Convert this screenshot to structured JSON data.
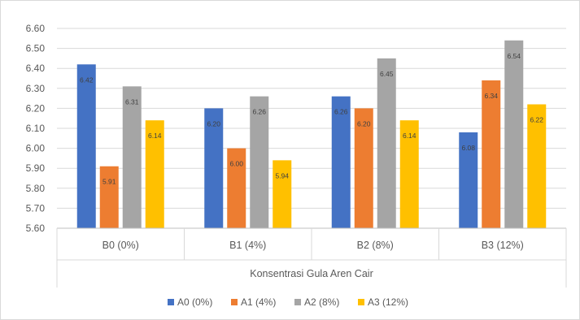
{
  "chart_data": {
    "type": "bar",
    "categories": [
      "B0 (0%)",
      "B1 (4%)",
      "B2 (8%)",
      "B3 (12%)"
    ],
    "series": [
      {
        "name": "A0 (0%)",
        "color": "#4472C4",
        "values": [
          6.42,
          6.2,
          6.26,
          6.08
        ],
        "labels": [
          "6.42",
          "6.20",
          "6.26",
          "6.08"
        ]
      },
      {
        "name": "A1 (4%)",
        "color": "#ED7D31",
        "values": [
          5.91,
          6.0,
          6.2,
          6.34
        ],
        "labels": [
          "5.91",
          "6.00",
          "6.20",
          "6.34"
        ]
      },
      {
        "name": "A2 (8%)",
        "color": "#A5A5A5",
        "values": [
          6.31,
          6.26,
          6.45,
          6.54
        ],
        "labels": [
          "6.31",
          "6.26",
          "6.45",
          "6.54"
        ]
      },
      {
        "name": "A3 (12%)",
        "color": "#FFC000",
        "values": [
          6.14,
          5.94,
          6.14,
          6.22
        ],
        "labels": [
          "6.14",
          "5.94",
          "6.14",
          "6.22"
        ]
      }
    ],
    "xlabel": "Konsentrasi Gula Aren Cair",
    "ylabel": "",
    "ylim": [
      5.6,
      6.6
    ],
    "yticks": [
      "6.60",
      "6.50",
      "6.40",
      "6.30",
      "6.20",
      "6.10",
      "6.00",
      "5.90",
      "5.80",
      "5.70",
      "5.60"
    ],
    "grid": true,
    "legend": "bottom"
  }
}
